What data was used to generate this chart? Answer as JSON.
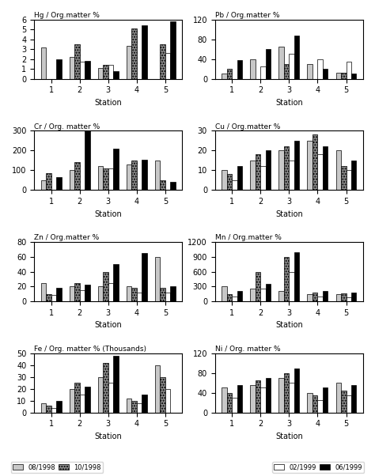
{
  "subplots": [
    {
      "title": "Hg / Org.matter %",
      "ylabel": "",
      "ylim": [
        0,
        6
      ],
      "yticks": [
        0,
        1,
        2,
        3,
        4,
        5,
        6
      ],
      "data": {
        "08/1998": [
          3.2,
          2.2,
          1.1,
          3.3,
          0.0
        ],
        "10/1998": [
          0.0,
          3.5,
          1.4,
          5.1,
          3.5
        ],
        "02/1999": [
          0.0,
          1.7,
          1.4,
          0.0,
          2.6
        ],
        "06/1999": [
          2.0,
          1.8,
          0.8,
          5.4,
          5.8
        ]
      }
    },
    {
      "title": "Pb / Org.matter %",
      "ylabel": "",
      "ylim": [
        0,
        120
      ],
      "yticks": [
        0,
        40,
        80,
        120
      ],
      "data": {
        "08/1998": [
          10,
          40,
          65,
          30,
          12
        ],
        "10/1998": [
          20,
          0,
          30,
          0,
          12
        ],
        "02/1999": [
          0,
          25,
          50,
          40,
          35
        ],
        "06/1999": [
          38,
          60,
          88,
          20,
          10
        ]
      }
    },
    {
      "title": "Cr / Org. matter %",
      "ylabel": "",
      "ylim": [
        0,
        300
      ],
      "yticks": [
        0,
        100,
        200,
        300
      ],
      "data": {
        "08/1998": [
          50,
          100,
          120,
          130,
          150
        ],
        "10/1998": [
          85,
          140,
          110,
          148,
          48
        ],
        "02/1999": [
          0,
          0,
          110,
          0,
          0
        ],
        "06/1999": [
          65,
          305,
          210,
          155,
          40
        ]
      }
    },
    {
      "title": "Cu / Org.matter %",
      "ylabel": "",
      "ylim": [
        0,
        30
      ],
      "yticks": [
        0,
        10,
        20,
        30
      ],
      "data": {
        "08/1998": [
          10,
          15,
          20,
          25,
          20
        ],
        "10/1998": [
          8,
          18,
          22,
          28,
          12
        ],
        "02/1999": [
          5,
          12,
          15,
          18,
          10
        ],
        "06/1999": [
          12,
          20,
          25,
          22,
          15
        ]
      }
    },
    {
      "title": "Zn / Org.matter %",
      "ylabel": "",
      "ylim": [
        0,
        80
      ],
      "yticks": [
        0,
        20,
        40,
        60,
        80
      ],
      "data": {
        "08/1998": [
          25,
          20,
          20,
          20,
          60
        ],
        "10/1998": [
          10,
          25,
          40,
          18,
          18
        ],
        "02/1999": [
          8,
          15,
          25,
          12,
          12
        ],
        "06/1999": [
          18,
          22,
          50,
          65,
          20
        ]
      }
    },
    {
      "title": "Mn / Org.matter %",
      "ylabel": "",
      "ylim": [
        0,
        1200
      ],
      "yticks": [
        0,
        300,
        600,
        900,
        1200
      ],
      "data": {
        "08/1998": [
          300,
          250,
          200,
          150,
          150
        ],
        "10/1998": [
          150,
          600,
          900,
          180,
          160
        ],
        "02/1999": [
          100,
          250,
          600,
          100,
          80
        ],
        "06/1999": [
          200,
          350,
          1000,
          200,
          180
        ]
      }
    },
    {
      "title": "Fe / Org. matter % (Thousands)",
      "ylabel": "",
      "ylim": [
        0,
        50
      ],
      "yticks": [
        0,
        10,
        20,
        30,
        40,
        50
      ],
      "data": {
        "08/1998": [
          8,
          20,
          30,
          12,
          40
        ],
        "10/1998": [
          6,
          25,
          42,
          10,
          30
        ],
        "02/1999": [
          4,
          15,
          25,
          8,
          20
        ],
        "06/1999": [
          10,
          22,
          48,
          15,
          0
        ]
      }
    },
    {
      "title": "Ni / Org. matter %",
      "ylabel": "",
      "ylim": [
        0,
        120
      ],
      "yticks": [
        0,
        40,
        80,
        120
      ],
      "data": {
        "08/1998": [
          50,
          55,
          70,
          40,
          60
        ],
        "10/1998": [
          40,
          65,
          80,
          35,
          45
        ],
        "02/1999": [
          30,
          50,
          60,
          25,
          35
        ],
        "06/1999": [
          55,
          70,
          90,
          50,
          55
        ]
      }
    }
  ],
  "legend_labels": [
    "08/1998",
    "10/1998",
    "02/1999",
    "06/1999"
  ],
  "bar_colors": [
    "#d3d3d3",
    "#a9a9a9",
    "#ffffff",
    "#000000"
  ],
  "bar_hatches": [
    "",
    ".....",
    "",
    ""
  ],
  "stations": [
    1,
    2,
    3,
    4,
    5
  ]
}
